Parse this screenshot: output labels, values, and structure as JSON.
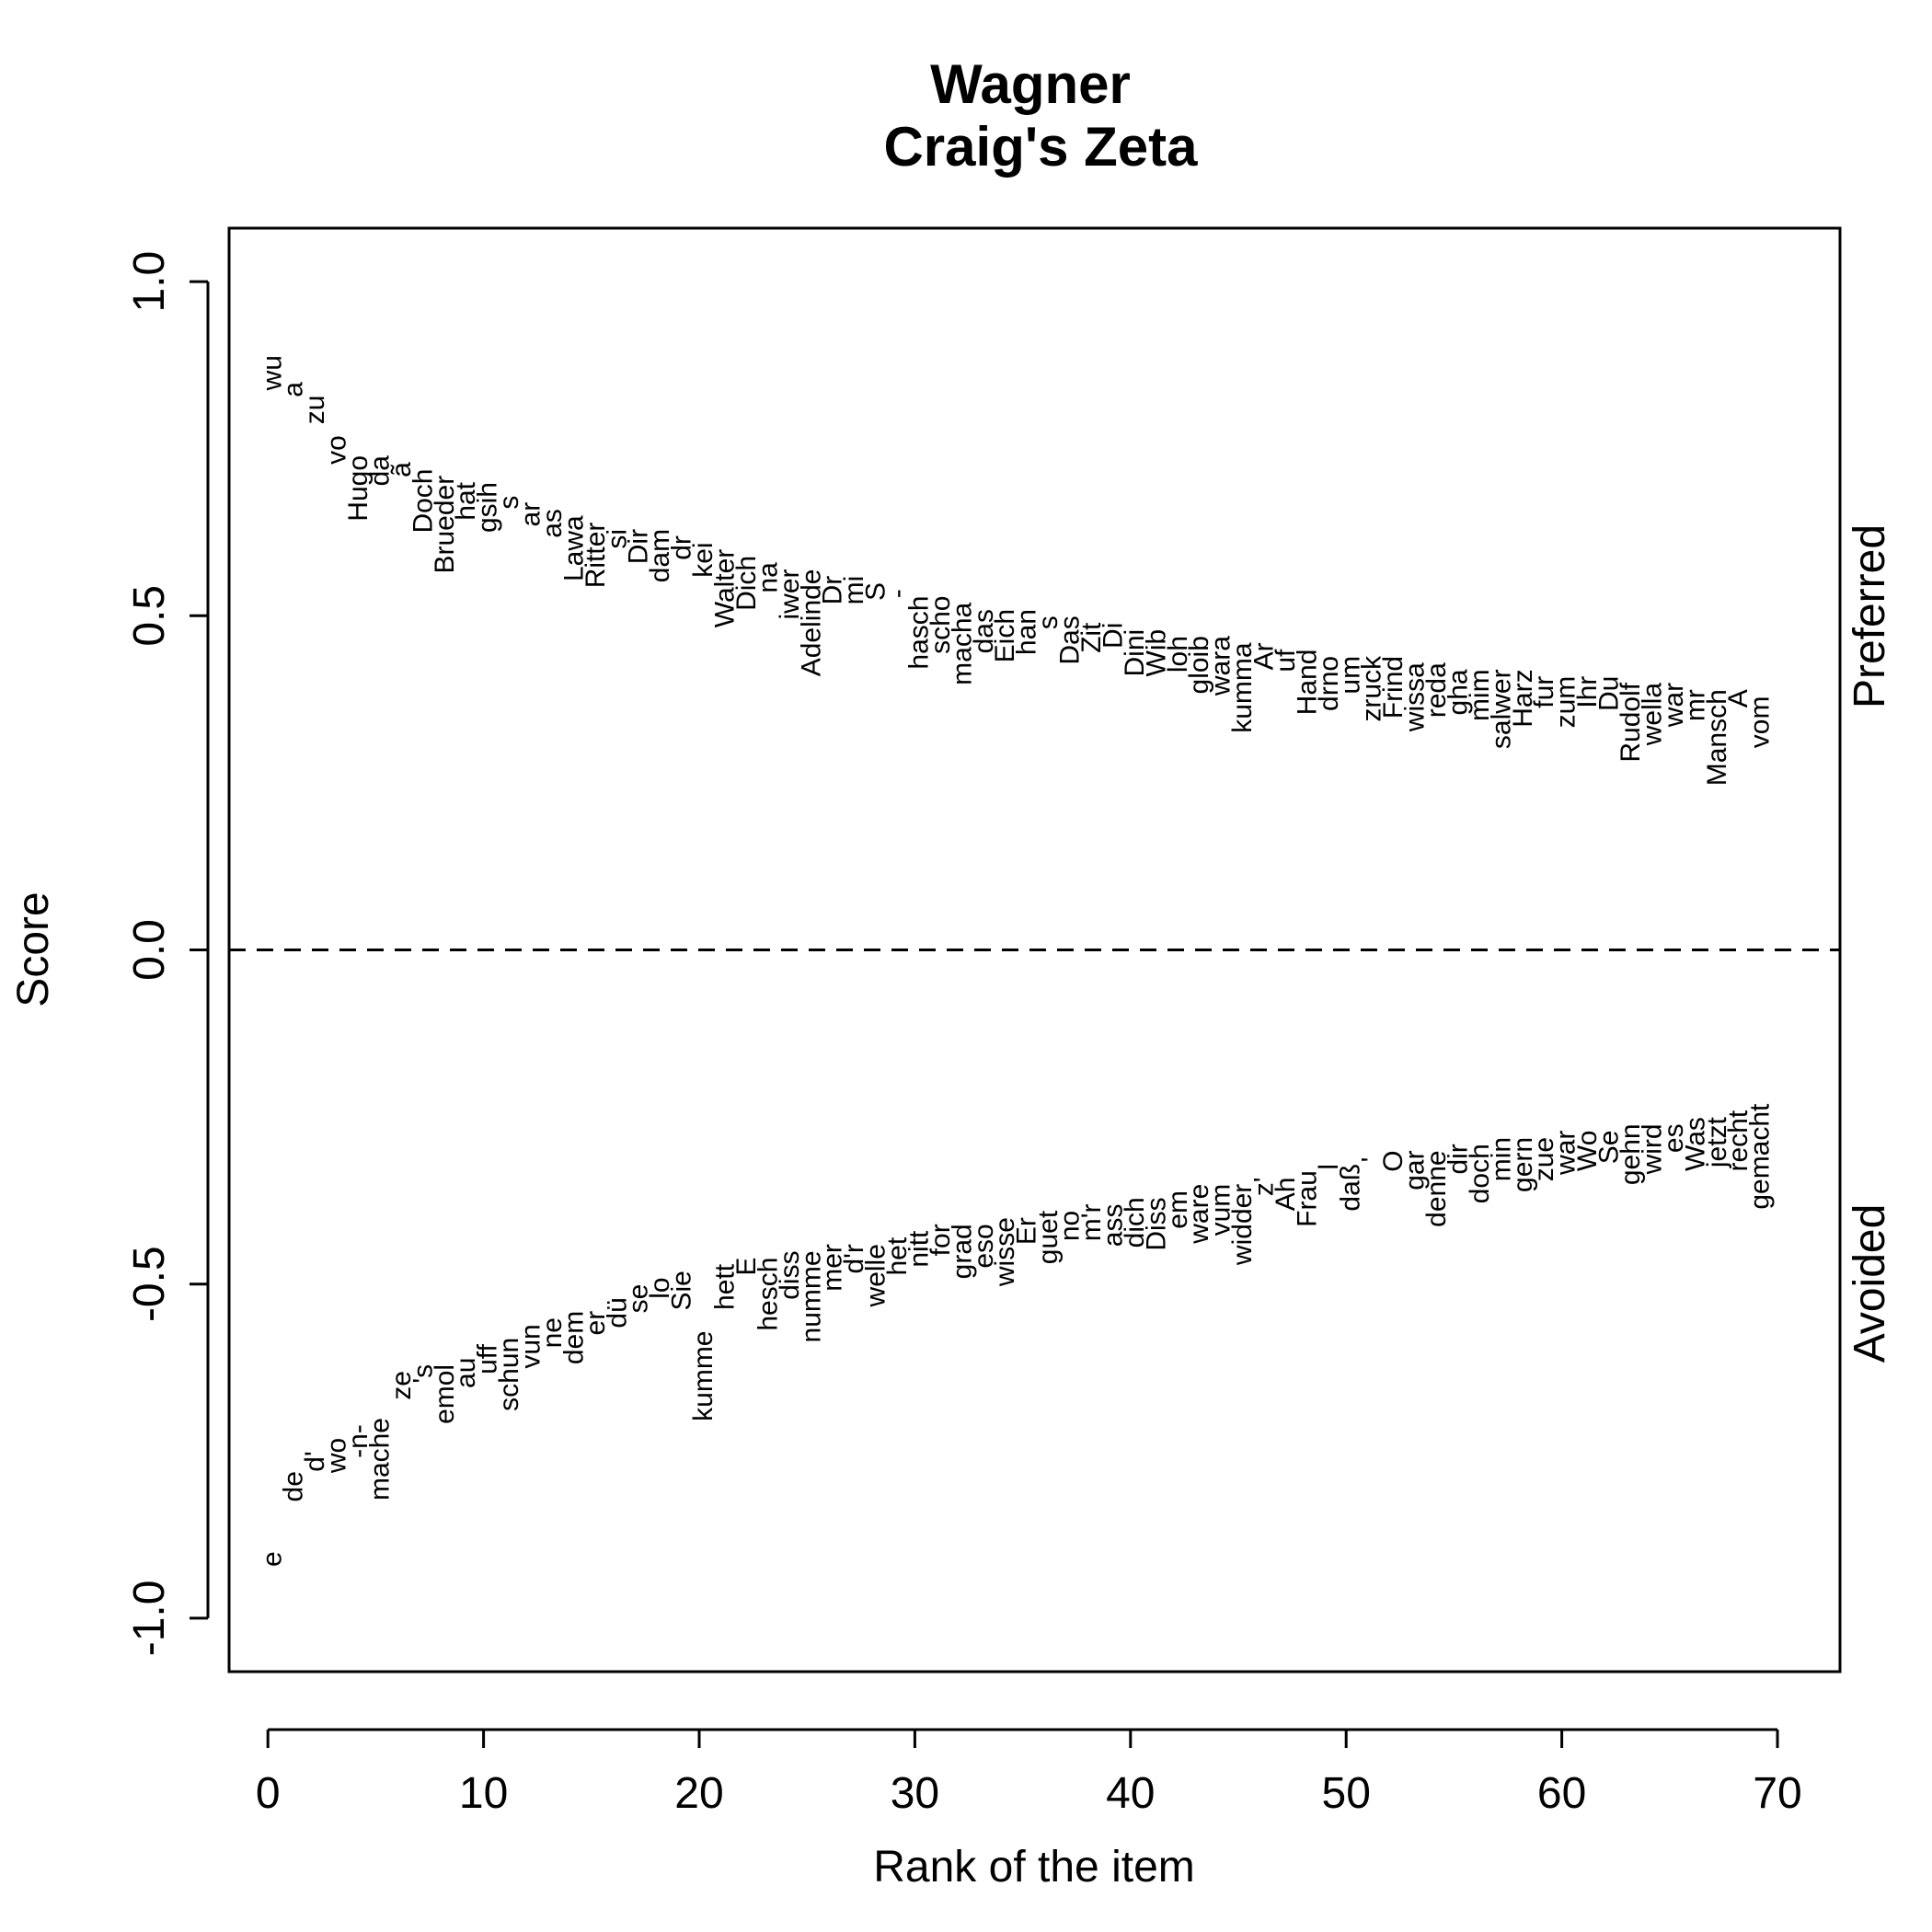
{
  "chart_data": {
    "type": "scatter",
    "title": "Wagner",
    "subtitle": "Craig's Zeta",
    "xlabel": "Rank of the item",
    "ylabel": "Score",
    "xlim": [
      -1.8,
      72.9
    ],
    "ylim": [
      -1.08,
      1.08
    ],
    "xticks": [
      0,
      10,
      20,
      30,
      40,
      50,
      60,
      70
    ],
    "yticks": [
      -1.0,
      -0.5,
      0.0,
      0.5,
      1.0
    ],
    "xtick_labels": [
      "0",
      "10",
      "20",
      "30",
      "40",
      "50",
      "60",
      "70"
    ],
    "ytick_labels": [
      "-1.0",
      "-0.5",
      "0.0",
      "0.5",
      "1.0"
    ],
    "reference_line": {
      "y": 0,
      "style": "dashed"
    },
    "right_labels": {
      "top": "Preferred",
      "bottom": "Avoided"
    },
    "series": [
      {
        "group": "Preferred",
        "labels": [
          "wu",
          "a",
          "zu",
          "vo",
          "Hugo",
          "da",
          "ã",
          "Doch",
          "Brueder",
          "hat",
          "gsih",
          "s",
          "ar",
          "as",
          "Lawa",
          "Ritter",
          "si",
          "Dir",
          "dam",
          "dr",
          "kei",
          "Walter",
          "Dich",
          "na",
          "iwer",
          "Adelinde",
          "Dr",
          "mi",
          "S",
          "-",
          "hasch",
          "scho",
          "macha",
          "das",
          "Eich",
          "han",
          "s",
          "Das",
          "Zit",
          "Di",
          "Dini",
          "Wib",
          "loh",
          "gloib",
          "wara",
          "kumma",
          "Ar",
          "uf",
          "Hand",
          "drno",
          "um",
          "zruck",
          "Frind",
          "wissa",
          "reda",
          "gha",
          "mim",
          "salwer",
          "Harz",
          "fur",
          "zum",
          "Ihr",
          "Du",
          "Rudolf",
          "wella",
          "war",
          "mr",
          "Mansch",
          "A",
          "vom"
        ],
        "values": [
          0.89,
          0.85,
          0.83,
          0.77,
          0.74,
          0.74,
          0.73,
          0.72,
          0.71,
          0.7,
          0.7,
          0.68,
          0.67,
          0.66,
          0.65,
          0.64,
          0.63,
          0.63,
          0.63,
          0.62,
          0.61,
          0.6,
          0.59,
          0.58,
          0.57,
          0.57,
          0.56,
          0.56,
          0.55,
          0.54,
          0.53,
          0.53,
          0.52,
          0.51,
          0.51,
          0.51,
          0.5,
          0.5,
          0.49,
          0.49,
          0.48,
          0.48,
          0.47,
          0.47,
          0.47,
          0.46,
          0.46,
          0.45,
          0.45,
          0.44,
          0.44,
          0.44,
          0.44,
          0.43,
          0.43,
          0.42,
          0.42,
          0.42,
          0.42,
          0.41,
          0.41,
          0.41,
          0.41,
          0.4,
          0.4,
          0.4,
          0.39,
          0.39,
          0.39,
          0.38
        ]
      },
      {
        "group": "Avoided",
        "labels": [
          "e",
          "de",
          "d'",
          "wo",
          "-n-",
          "mache",
          "ze",
          "'s",
          "emol",
          "au",
          "uff",
          "schun",
          "vun",
          "ne",
          "dem",
          "er",
          "dü",
          "se",
          "lo",
          "Sie",
          "kumme",
          "hett",
          "E",
          "hesch",
          "diss",
          "numme",
          "mer",
          "d'r",
          "welle",
          "het",
          "nitt",
          "for",
          "grad",
          "eso",
          "wisse",
          "Er",
          "guet",
          "no",
          "m'r",
          "ass",
          "dich",
          "Diss",
          "em",
          "ware",
          "vum",
          "widder",
          "z'",
          "Ah",
          "Frau",
          "l",
          "daß",
          "'",
          "O",
          "gar",
          "denne",
          "dir",
          "doch",
          "min",
          "gern",
          "zue",
          "war",
          "Wo",
          "Se",
          "gehn",
          "wird",
          "es",
          "Was",
          "jetzt",
          "recht",
          "gemacht"
        ],
        "values": [
          -0.9,
          -0.78,
          -0.75,
          -0.73,
          -0.71,
          -0.7,
          -0.63,
          -0.62,
          -0.62,
          -0.61,
          -0.59,
          -0.58,
          -0.56,
          -0.55,
          -0.54,
          -0.54,
          -0.52,
          -0.5,
          -0.49,
          -0.48,
          -0.57,
          -0.47,
          -0.46,
          -0.46,
          -0.45,
          -0.45,
          -0.44,
          -0.44,
          -0.44,
          -0.43,
          -0.42,
          -0.41,
          -0.41,
          -0.41,
          -0.4,
          -0.4,
          -0.39,
          -0.39,
          -0.38,
          -0.38,
          -0.37,
          -0.37,
          -0.36,
          -0.35,
          -0.35,
          -0.35,
          -0.34,
          -0.34,
          -0.33,
          -0.32,
          -0.32,
          -0.31,
          -0.3,
          -0.3,
          -0.3,
          -0.29,
          -0.29,
          -0.28,
          -0.28,
          -0.28,
          -0.27,
          -0.27,
          -0.27,
          -0.26,
          -0.26,
          -0.26,
          -0.25,
          -0.25,
          -0.24,
          -0.23
        ]
      }
    ]
  }
}
